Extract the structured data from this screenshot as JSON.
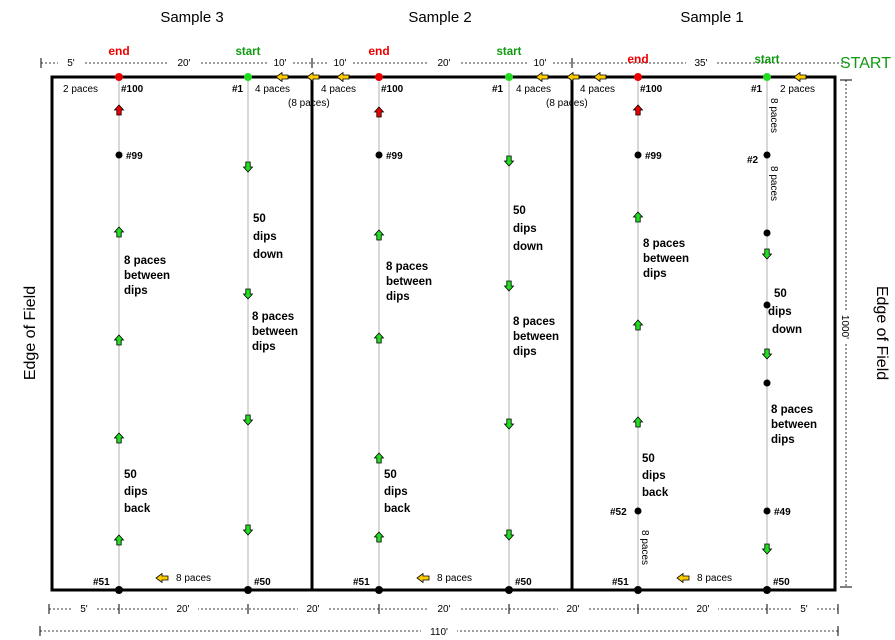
{
  "headers": [
    "Sample 3",
    "Sample 2",
    "Sample 1"
  ],
  "edge_label": "Edge of Field",
  "start_big": "START",
  "end_label": "end",
  "start_label": "start",
  "top_dims": [
    "5'",
    "20'",
    "10'",
    "10'",
    "20'",
    "10'",
    "35'"
  ],
  "bottom_dims": [
    "5'",
    "20'",
    "20'",
    "20'",
    "20'",
    "20'",
    "5'"
  ],
  "total_width": "110'",
  "height_dim": "1000'",
  "paces_2": "2 paces",
  "paces_4": "4 paces",
  "paces_8_paren": "(8 paces)",
  "paces_8": "8 paces",
  "dips_down": [
    "50",
    "dips",
    "down"
  ],
  "dips_back": [
    "50",
    "dips",
    "back"
  ],
  "between": [
    "8 paces",
    "between",
    "dips"
  ],
  "points": [
    "#1",
    "#2",
    "#49",
    "#50",
    "#51",
    "#52",
    "#99",
    "#100"
  ],
  "colors": {
    "end": "#ee0000",
    "start": "#22dd22",
    "arrow_down": "#22dd22",
    "arrow_left": "#ffcc00",
    "line": "#b0b0b0"
  }
}
